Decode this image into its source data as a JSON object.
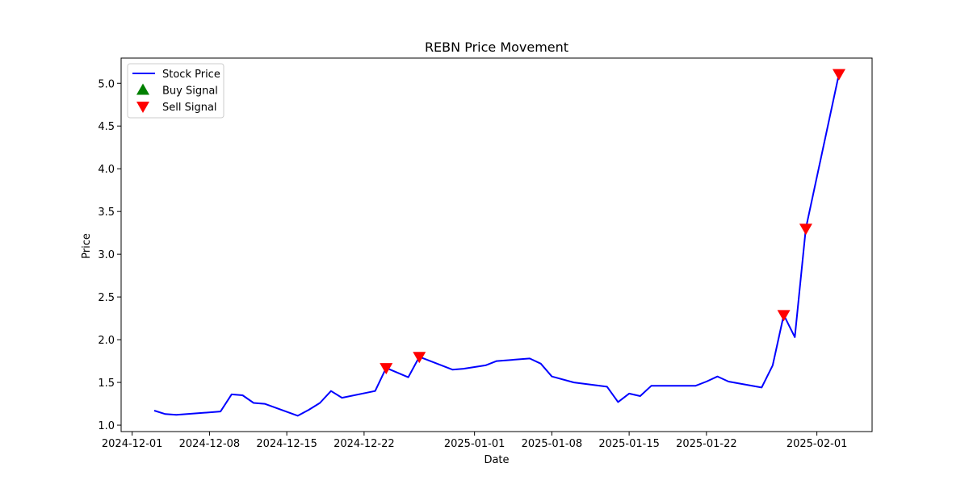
{
  "chart_data": {
    "type": "line",
    "title": "REBN Price Movement",
    "xlabel": "Date",
    "ylabel": "Price",
    "xlim": [
      "2024-11-30",
      "2025-02-06"
    ],
    "ylim": [
      0.925,
      5.295
    ],
    "grid": false,
    "legend_position": "top-left",
    "x_ticks": [
      "2024-12-01",
      "2024-12-08",
      "2024-12-15",
      "2024-12-22",
      "2025-01-01",
      "2025-01-08",
      "2025-01-15",
      "2025-01-22",
      "2025-02-01"
    ],
    "y_ticks": [
      "1.0",
      "1.5",
      "2.0",
      "2.5",
      "3.0",
      "3.5",
      "4.0",
      "4.5",
      "5.0"
    ],
    "series": [
      {
        "name": "Stock Price",
        "color": "#0000ff",
        "points": [
          [
            "2024-12-03",
            1.17
          ],
          [
            "2024-12-04",
            1.13
          ],
          [
            "2024-12-05",
            1.12
          ],
          [
            "2024-12-09",
            1.16
          ],
          [
            "2024-12-10",
            1.36
          ],
          [
            "2024-12-11",
            1.35
          ],
          [
            "2024-12-12",
            1.26
          ],
          [
            "2024-12-13",
            1.25
          ],
          [
            "2024-12-16",
            1.11
          ],
          [
            "2024-12-17",
            1.18
          ],
          [
            "2024-12-18",
            1.26
          ],
          [
            "2024-12-19",
            1.4
          ],
          [
            "2024-12-20",
            1.32
          ],
          [
            "2024-12-23",
            1.4
          ],
          [
            "2024-12-24",
            1.67
          ],
          [
            "2024-12-26",
            1.56
          ],
          [
            "2024-12-27",
            1.8
          ],
          [
            "2024-12-30",
            1.65
          ],
          [
            "2024-12-31",
            1.66
          ],
          [
            "2025-01-02",
            1.7
          ],
          [
            "2025-01-03",
            1.75
          ],
          [
            "2025-01-06",
            1.78
          ],
          [
            "2025-01-07",
            1.72
          ],
          [
            "2025-01-08",
            1.57
          ],
          [
            "2025-01-10",
            1.5
          ],
          [
            "2025-01-13",
            1.45
          ],
          [
            "2025-01-14",
            1.27
          ],
          [
            "2025-01-15",
            1.37
          ],
          [
            "2025-01-16",
            1.34
          ],
          [
            "2025-01-17",
            1.46
          ],
          [
            "2025-01-21",
            1.46
          ],
          [
            "2025-01-22",
            1.51
          ],
          [
            "2025-01-23",
            1.57
          ],
          [
            "2025-01-24",
            1.51
          ],
          [
            "2025-01-27",
            1.44
          ],
          [
            "2025-01-28",
            1.7
          ],
          [
            "2025-01-29",
            2.29
          ],
          [
            "2025-01-30",
            2.03
          ],
          [
            "2025-01-31",
            3.3
          ],
          [
            "2025-02-03",
            5.11
          ]
        ]
      },
      {
        "name": "Buy Signal",
        "color": "#008000",
        "marker": "triangle-up",
        "points": []
      },
      {
        "name": "Sell Signal",
        "color": "#ff0000",
        "marker": "triangle-down",
        "points": [
          [
            "2024-12-24",
            1.67
          ],
          [
            "2024-12-27",
            1.8
          ],
          [
            "2025-01-29",
            2.29
          ],
          [
            "2025-01-31",
            3.3
          ],
          [
            "2025-02-03",
            5.11
          ]
        ]
      }
    ]
  }
}
